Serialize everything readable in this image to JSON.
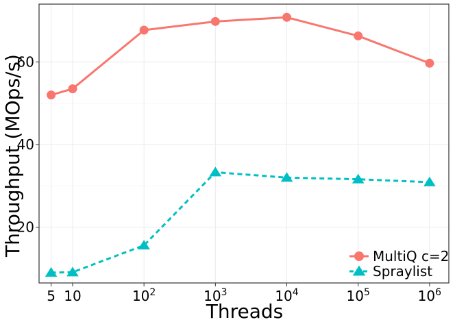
{
  "chart_data": {
    "type": "line",
    "title": "",
    "xlabel": "Threads",
    "ylabel": "Throughput (MOps/s)",
    "x_scale": "log10",
    "x": [
      5,
      10,
      100,
      1000,
      10000,
      100000,
      1000000
    ],
    "x_tick_labels": [
      {
        "value": 5,
        "base": "5",
        "exp": ""
      },
      {
        "value": 10,
        "base": "10",
        "exp": ""
      },
      {
        "value": 100,
        "base": "10",
        "exp": "2"
      },
      {
        "value": 1000,
        "base": "10",
        "exp": "3"
      },
      {
        "value": 10000,
        "base": "10",
        "exp": "4"
      },
      {
        "value": 100000,
        "base": "10",
        "exp": "5"
      },
      {
        "value": 1000000,
        "base": "10",
        "exp": "6"
      }
    ],
    "y_ticks": [
      20,
      40,
      60
    ],
    "ylim": [
      6.5,
      74
    ],
    "xlim_log10": [
      0.53,
      6.27
    ],
    "grid": true,
    "legend_position": "bottom-right",
    "series": [
      {
        "name": "MultiQ c=2",
        "color": "#F8766D",
        "marker": "circle",
        "dash": "solid",
        "values": [
          52,
          53.5,
          67.7,
          69.8,
          70.8,
          66.3,
          59.7
        ]
      },
      {
        "name": "Spraylist",
        "color": "#00BFC4",
        "marker": "triangle",
        "dash": "dashed",
        "values": [
          9,
          9.1,
          15.6,
          33.3,
          32,
          31.6,
          30.9
        ]
      }
    ]
  }
}
